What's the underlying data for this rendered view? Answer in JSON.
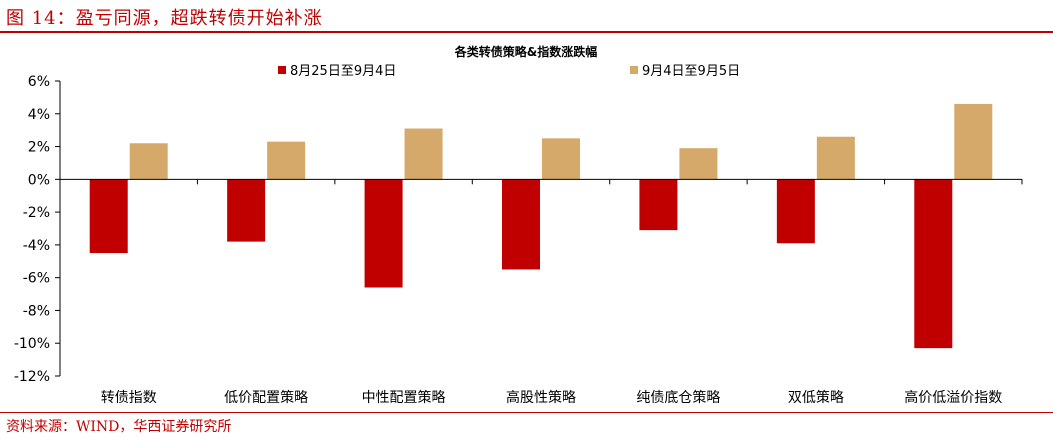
{
  "header": {
    "title": "图 14：盈亏同源，超跌转债开始补涨"
  },
  "footer": {
    "source": "资料来源：WIND，华西证券研究所"
  },
  "colors": {
    "series1": "#c00000",
    "series2": "#d4a96a",
    "accent": "#c00000"
  },
  "chart_data": {
    "type": "bar",
    "title": "各类转债策略&指数涨跌幅",
    "xlabel": "",
    "ylabel": "",
    "ylim": [
      -12,
      6
    ],
    "yticks": [
      6,
      4,
      2,
      0,
      -2,
      -4,
      -6,
      -8,
      -10,
      -12
    ],
    "ytick_labels": [
      "6%",
      "4%",
      "2%",
      "0%",
      "-2%",
      "-4%",
      "-6%",
      "-8%",
      "-10%",
      "-12%"
    ],
    "grid": false,
    "legend_position": "top",
    "categories": [
      "转债指数",
      "低价配置策略",
      "中性配置策略",
      "高股性策略",
      "纯债底仓策略",
      "双低策略",
      "高价低溢价指数"
    ],
    "series": [
      {
        "name": "8月25日至9月4日",
        "values": [
          -4.5,
          -3.8,
          -6.6,
          -5.5,
          -3.1,
          -3.9,
          -10.3
        ]
      },
      {
        "name": "9月4日至9月5日",
        "values": [
          2.2,
          2.3,
          3.1,
          2.5,
          1.9,
          2.6,
          4.6
        ]
      }
    ]
  }
}
